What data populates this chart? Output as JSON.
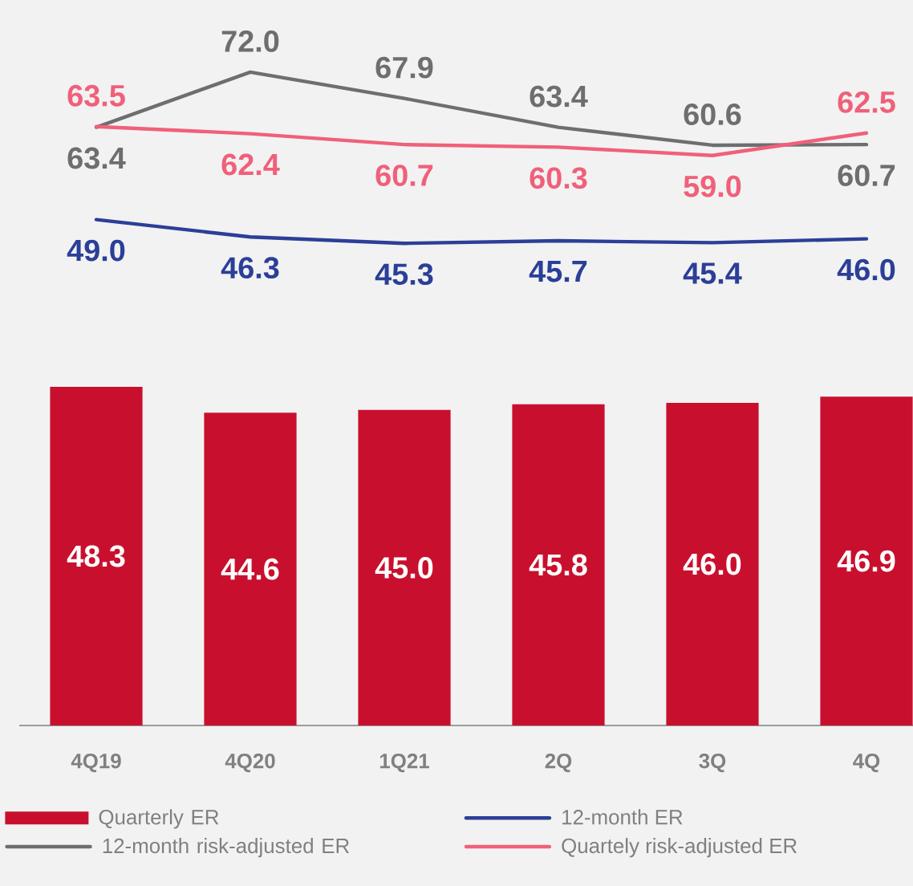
{
  "chart_data": [
    {
      "type": "line",
      "categories": [
        null,
        null,
        null,
        null,
        null,
        null
      ],
      "series": [
        {
          "name": "12-month ER",
          "color": "#2b3f98",
          "values": [
            49.0,
            46.3,
            45.3,
            45.7,
            45.4,
            46.0
          ],
          "value_labels": [
            "49.0",
            "46.3",
            "45.3",
            "45.7",
            "45.4",
            "46.0"
          ]
        },
        {
          "name": "12-month risk-adjusted ER",
          "color": "#6e6e70",
          "values": [
            63.4,
            72.0,
            67.9,
            63.4,
            60.6,
            60.7
          ],
          "value_labels": [
            "63.4",
            "72.0",
            "67.9",
            "63.4",
            "60.6",
            "60.7"
          ]
        },
        {
          "name": "Quartely risk-adjusted ER",
          "color": "#f0607a",
          "values": [
            63.5,
            62.4,
            60.7,
            60.3,
            59.0,
            62.5
          ],
          "value_labels": [
            "63.5",
            "62.4",
            "60.7",
            "60.3",
            "59.0",
            "62.5"
          ]
        }
      ],
      "legend": "bottom",
      "marker": "none",
      "line_style": "solid"
    },
    {
      "type": "bar",
      "categories": [
        "4Q19",
        "4Q20",
        "1Q21",
        "2Q",
        "3Q",
        "4Q"
      ],
      "series": [
        {
          "name": "Quarterly ER",
          "color": "#c8102e",
          "values": [
            48.3,
            44.6,
            45.0,
            45.8,
            46.0,
            46.9
          ],
          "value_labels": [
            "48.3",
            "44.6",
            "45.0",
            "45.8",
            "46.0",
            "46.9"
          ]
        }
      ],
      "legend": "bottom"
    }
  ]
}
